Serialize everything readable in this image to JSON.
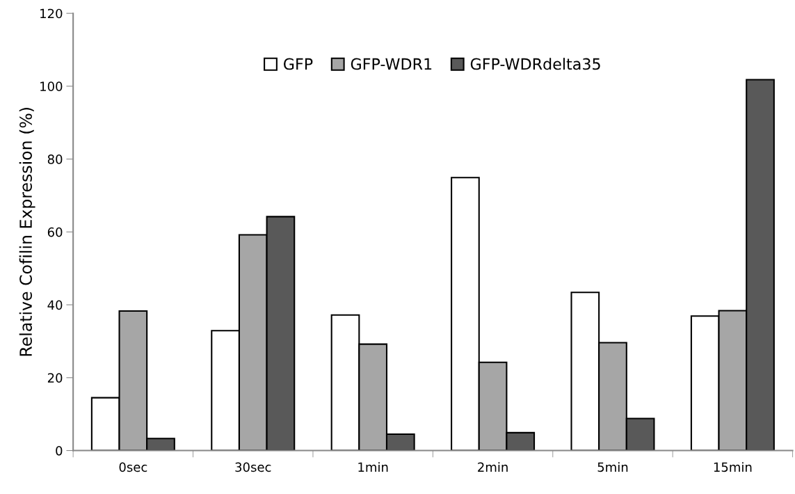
{
  "chart_data": {
    "type": "bar",
    "ylabel": "Relative Cofilin Expression (%)",
    "categories": [
      "0sec",
      "30sec",
      "1min",
      "2min",
      "5min",
      "15min"
    ],
    "series": [
      {
        "name": "GFP",
        "color": "#ffffff",
        "values": [
          14.5,
          32.9,
          37.2,
          74.9,
          43.4,
          36.9
        ]
      },
      {
        "name": "GFP-WDR1",
        "color": "#a6a6a6",
        "values": [
          38.3,
          59.2,
          29.2,
          24.2,
          29.6,
          38.4
        ]
      },
      {
        "name": "GFP-WDRdelta35",
        "color": "#595959",
        "values": [
          3.3,
          64.2,
          4.5,
          4.9,
          8.8,
          101.8
        ]
      }
    ],
    "ylim": [
      0,
      120
    ],
    "yticks": [
      0,
      20,
      40,
      60,
      80,
      100,
      120
    ],
    "grid": false,
    "legend": "top"
  }
}
